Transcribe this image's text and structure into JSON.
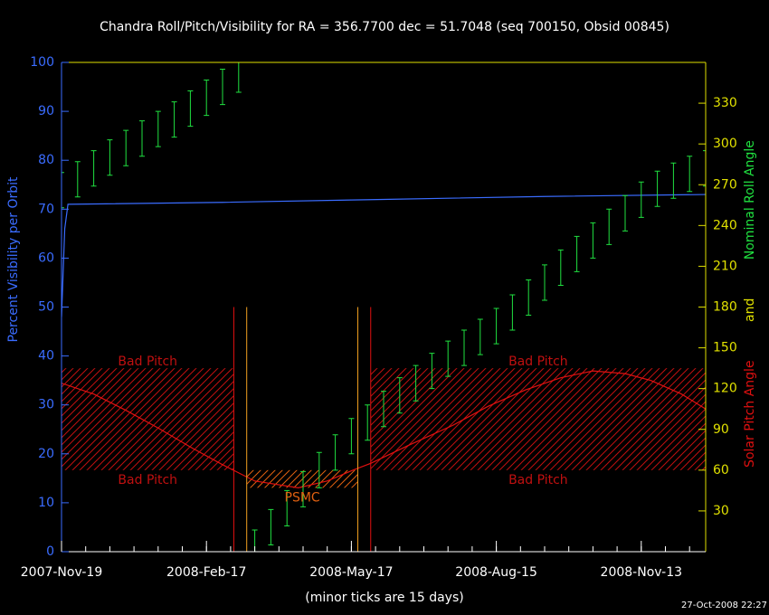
{
  "chart_data": {
    "type": "line",
    "title": "Chandra Roll/Pitch/Visibility for RA = 356.7700 dec = 51.7048 (seq 700150, Obsid 00845)",
    "note": "(minor ticks are 15 days)",
    "timestamp": "27-Oct-2008 22:27",
    "ylabel": "Percent Visibility per Orbit",
    "y2label_parts": [
      {
        "text": "Solar Pitch Angle",
        "color": "#e01010"
      },
      {
        "text": "and",
        "color": "#e0e000"
      },
      {
        "text": "Nominal Roll Angle",
        "color": "#20e040"
      }
    ],
    "xlim": [
      0,
      400
    ],
    "xticks": [
      {
        "value": 0,
        "label": "2007-Nov-19"
      },
      {
        "value": 90,
        "label": "2008-Feb-17"
      },
      {
        "value": 180,
        "label": "2008-May-17"
      },
      {
        "value": 270,
        "label": "2008-Aug-15"
      },
      {
        "value": 360,
        "label": "2008-Nov-13"
      }
    ],
    "minor_tick_step": 15,
    "ylim": [
      0,
      100
    ],
    "yticks": [
      0,
      10,
      20,
      30,
      40,
      50,
      60,
      70,
      80,
      90,
      100
    ],
    "y2lim": [
      0,
      360
    ],
    "y2ticks": [
      30,
      60,
      90,
      120,
      150,
      180,
      210,
      240,
      270,
      300,
      330
    ],
    "ycolor": "#3a6cff",
    "y2color": "#e0e000",
    "series": [
      {
        "color": "#3a6cff",
        "axis": "y",
        "x": [
          0,
          2,
          4,
          100,
          200,
          300,
          400
        ],
        "values": [
          48,
          66,
          71,
          71.4,
          72,
          72.6,
          73
        ]
      },
      {
        "color": "#e01010",
        "axis": "y2",
        "x": [
          0,
          20,
          40,
          60,
          80,
          100,
          120,
          147,
          165,
          181,
          192,
          215,
          243,
          265,
          288,
          310,
          330,
          350,
          366,
          385,
          400
        ],
        "values": [
          124,
          116,
          104,
          91,
          77,
          64,
          52,
          47,
          52,
          60,
          65,
          78,
          93,
          107,
          119,
          128,
          133,
          131,
          126,
          116,
          105
        ]
      },
      {
        "color": "#20e040",
        "axis": "y2",
        "error": 13,
        "x": [
          0,
          10,
          20,
          30,
          40,
          50,
          60,
          70,
          80,
          90,
          100,
          110,
          115,
          120,
          130,
          140,
          150,
          160,
          170,
          180,
          190,
          200,
          210,
          220,
          230,
          240,
          250,
          260,
          270,
          280,
          290,
          300,
          310,
          320,
          330,
          340,
          350,
          360,
          370,
          380,
          390,
          400
        ],
        "values": [
          266,
          274,
          282,
          290,
          297,
          304,
          311,
          318,
          326,
          334,
          342,
          351,
          null,
          3,
          18,
          32,
          46,
          60,
          73,
          85,
          95,
          105,
          115,
          124,
          133,
          142,
          150,
          158,
          166,
          176,
          187,
          198,
          209,
          219,
          229,
          239,
          249,
          259,
          267,
          273,
          278,
          282
        ]
      }
    ],
    "regions": [
      {
        "x": [
          0,
          107
        ],
        "y": [
          60,
          135
        ],
        "color": "#c01010",
        "labels": [
          "Bad Pitch",
          "Bad Pitch"
        ],
        "label_positions": [
          "above",
          "below"
        ]
      },
      {
        "x": [
          192,
          400
        ],
        "y": [
          60,
          135
        ],
        "color": "#c01010",
        "labels": [
          "Bad Pitch",
          "Bad Pitch"
        ],
        "label_positions": [
          "above",
          "below"
        ]
      },
      {
        "x": [
          115,
          184
        ],
        "y": [
          47,
          60
        ],
        "color": "#e06010",
        "labels": [
          "PSMC"
        ],
        "label_positions": [
          "below"
        ]
      }
    ],
    "vline_top": 180,
    "vlines": [
      {
        "x": 107,
        "color": "#e01010"
      },
      {
        "x": 115,
        "color": "#f0a020"
      },
      {
        "x": 184,
        "color": "#f0a020"
      },
      {
        "x": 192,
        "color": "#e01010"
      }
    ]
  }
}
